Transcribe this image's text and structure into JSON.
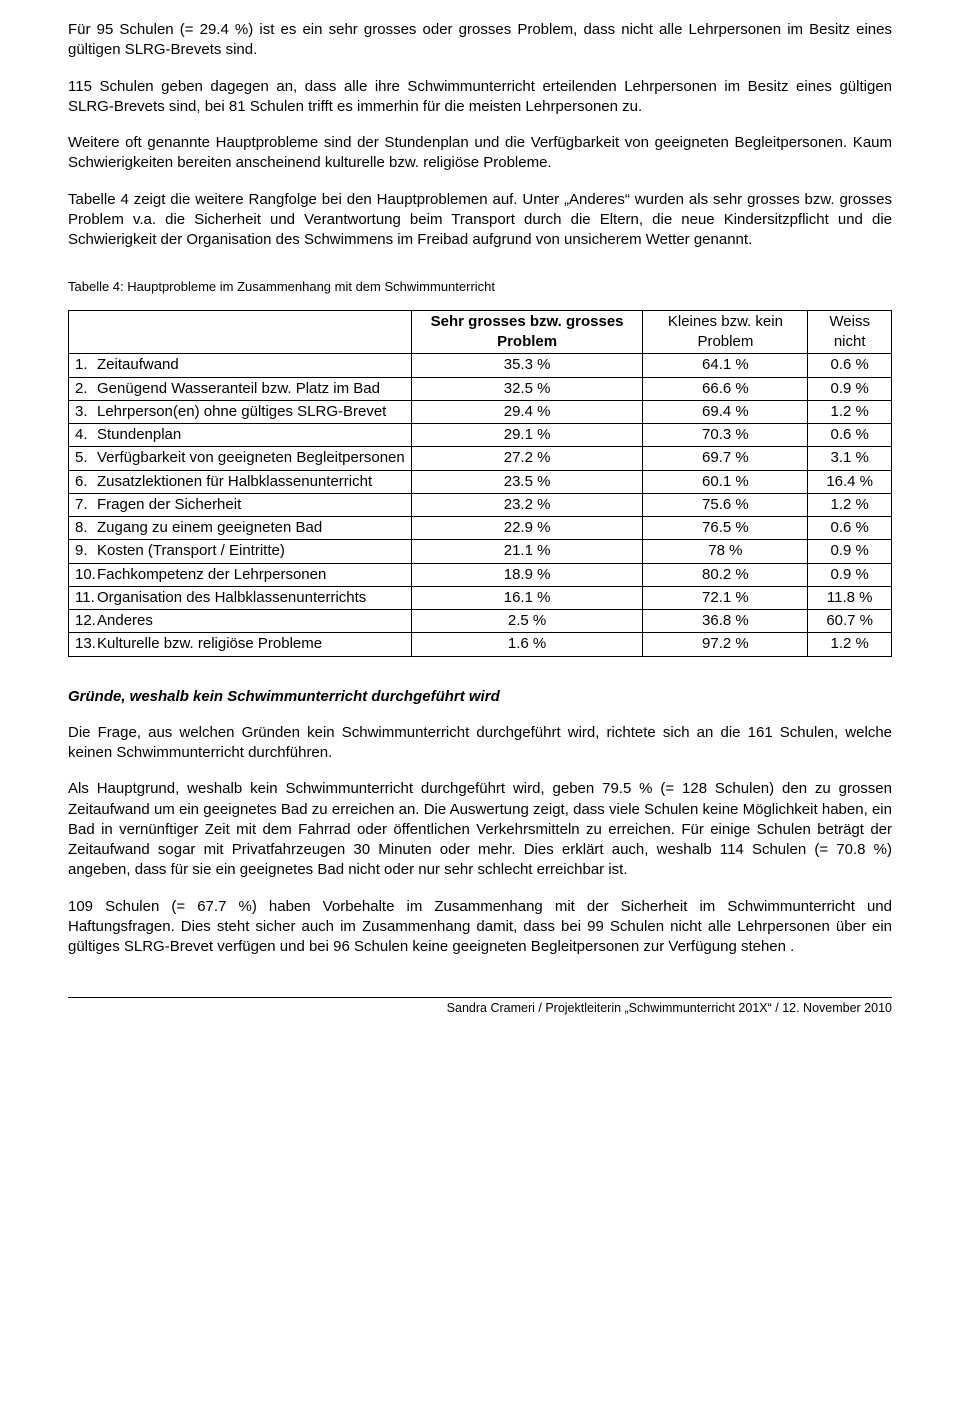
{
  "paragraphs": {
    "p1": "Für 95 Schulen (= 29.4 %) ist es ein sehr grosses oder grosses Problem, dass nicht alle Lehrpersonen im Besitz eines gültigen SLRG-Brevets sind.",
    "p2": "115 Schulen geben dagegen an, dass alle ihre Schwimmunterricht erteilenden Lehrpersonen im Besitz eines gültigen SLRG-Brevets sind, bei 81 Schulen trifft es immerhin für die meisten Lehrpersonen zu.",
    "p3": "Weitere oft genannte Hauptprobleme sind der Stundenplan und die Verfügbarkeit von geeigneten Begleitpersonen. Kaum Schwierigkeiten bereiten anscheinend kulturelle bzw. religiöse Probleme.",
    "p4": "Tabelle 4 zeigt die weitere Rangfolge bei den Hauptproblemen auf. Unter „Anderes“ wurden als sehr grosses bzw. grosses Problem v.a. die Sicherheit und Verantwortung beim Transport durch die Eltern, die neue Kindersitzpflicht und die Schwierigkeit der Organisation des Schwimmens im Freibad aufgrund von unsicherem Wetter genannt.",
    "p5": "Die Frage, aus welchen Gründen kein Schwimmunterricht durchgeführt wird, richtete sich an die 161 Schulen, welche keinen Schwimmunterricht durchführen.",
    "p6": "Als Hauptgrund, weshalb kein Schwimmunterricht durchgeführt wird, geben 79.5 % (= 128 Schulen) den zu grossen Zeitaufwand um ein geeignetes Bad zu erreichen an. Die Auswertung zeigt, dass viele Schulen keine Möglichkeit haben, ein Bad in vernünftiger Zeit mit dem Fahrrad oder öffentlichen Verkehrsmitteln zu erreichen. Für einige Schulen beträgt der Zeitaufwand sogar mit Privatfahrzeugen 30 Minuten oder mehr. Dies erklärt auch, weshalb 114 Schulen (= 70.8 %) angeben, dass für sie ein geeignetes Bad nicht oder nur sehr schlecht erreichbar ist.",
    "p7": "109 Schulen (= 67.7 %) haben Vorbehalte im Zusammenhang mit der Sicherheit im Schwimmunterricht und Haftungsfragen. Dies steht sicher auch im Zusammenhang damit, dass bei 99 Schulen nicht alle Lehrpersonen über ein gültiges SLRG-Brevet verfügen und bei 96 Schulen keine geeigneten Begleitpersonen zur Verfügung stehen ."
  },
  "table": {
    "caption": "Tabelle 4: Hauptprobleme im Zusammenhang mit dem Schwimmunterricht",
    "headers": {
      "c1": "Sehr grosses bzw. grosses Problem",
      "c2": "Kleines bzw. kein Problem",
      "c3": "Weiss nicht"
    },
    "rows": [
      {
        "n": "1.",
        "label": "Zeitaufwand",
        "c1": "35.3 %",
        "c2": "64.1 %",
        "c3": "0.6 %"
      },
      {
        "n": "2.",
        "label": "Genügend Wasseranteil bzw. Platz im Bad",
        "c1": "32.5 %",
        "c2": "66.6 %",
        "c3": "0.9 %"
      },
      {
        "n": "3.",
        "label": "Lehrperson(en) ohne gültiges SLRG-Brevet",
        "c1": "29.4 %",
        "c2": "69.4 %",
        "c3": "1.2 %"
      },
      {
        "n": "4.",
        "label": "Stundenplan",
        "c1": "29.1 %",
        "c2": "70.3 %",
        "c3": "0.6 %"
      },
      {
        "n": "5.",
        "label": "Verfügbarkeit von geeigneten Begleitpersonen",
        "c1": "27.2 %",
        "c2": "69.7 %",
        "c3": "3.1 %"
      },
      {
        "n": "6.",
        "label": "Zusatzlektionen für Halbklassenunterricht",
        "c1": "23.5 %",
        "c2": "60.1 %",
        "c3": "16.4 %"
      },
      {
        "n": "7.",
        "label": "Fragen der Sicherheit",
        "c1": "23.2 %",
        "c2": "75.6 %",
        "c3": "1.2 %"
      },
      {
        "n": "8.",
        "label": "Zugang zu einem geeigneten Bad",
        "c1": "22.9 %",
        "c2": "76.5 %",
        "c3": "0.6 %"
      },
      {
        "n": "9.",
        "label": "Kosten (Transport / Eintritte)",
        "c1": "21.1 %",
        "c2": "78 %",
        "c3": "0.9 %"
      },
      {
        "n": "10.",
        "label": "Fachkompetenz der Lehrpersonen",
        "c1": "18.9 %",
        "c2": "80.2 %",
        "c3": "0.9 %"
      },
      {
        "n": "11.",
        "label": "Organisation des Halbklassenunterrichts",
        "c1": "16.1 %",
        "c2": "72.1 %",
        "c3": "11.8 %"
      },
      {
        "n": "12.",
        "label": "Anderes",
        "c1": "2.5 %",
        "c2": "36.8 %",
        "c3": "60.7 %"
      },
      {
        "n": "13.",
        "label": "Kulturelle bzw. religiöse Probleme",
        "c1": "1.6 %",
        "c2": "97.2 %",
        "c3": "1.2 %"
      }
    ]
  },
  "subheading": "Gründe, weshalb kein Schwimmunterricht durchgeführt wird",
  "footer": "Sandra Crameri / Projektleiterin „Schwimmunterricht 201X“ / 12. November 2010"
}
